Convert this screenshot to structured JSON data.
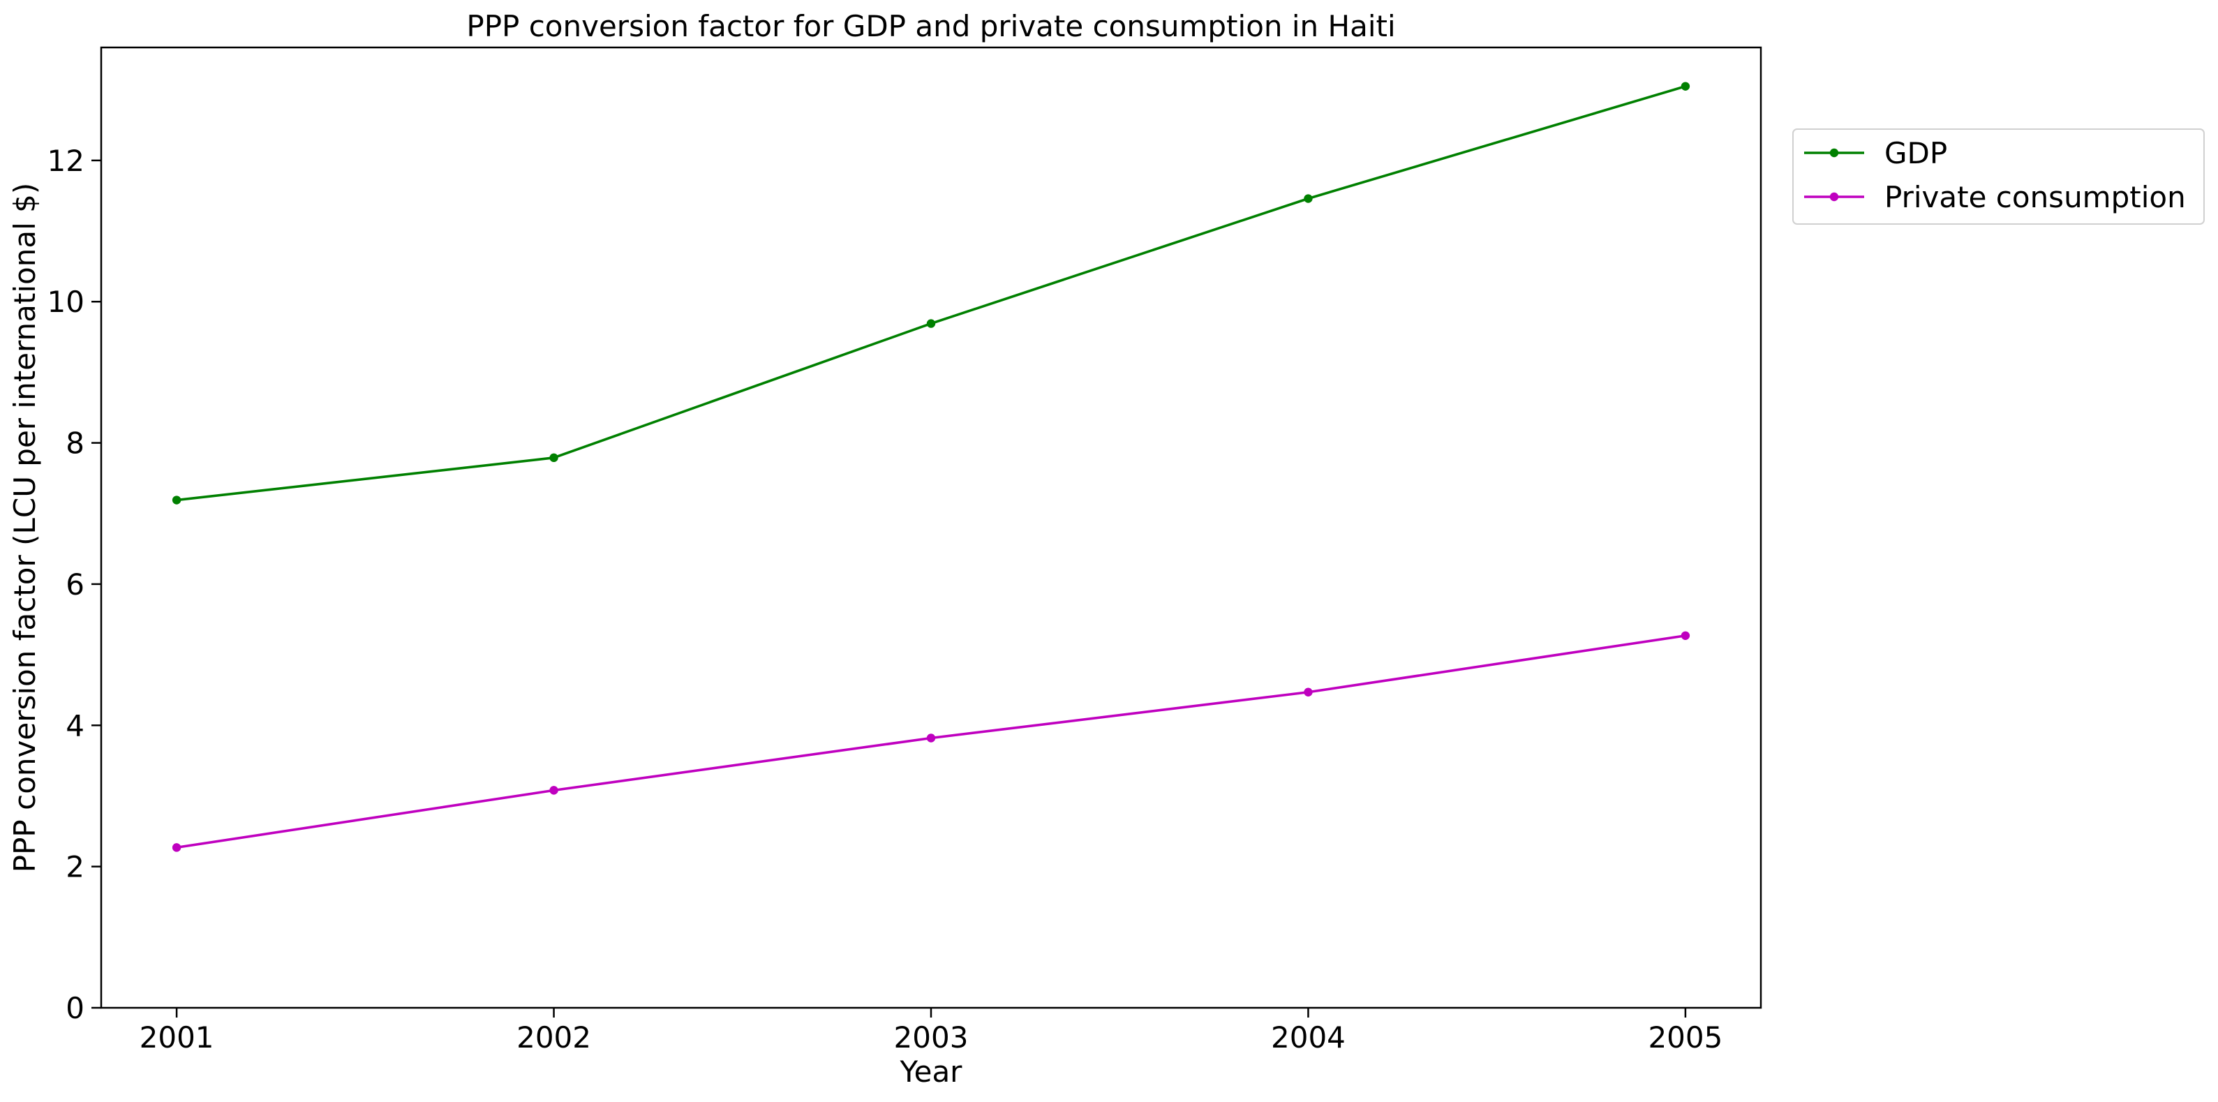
{
  "chart_data": {
    "type": "line",
    "title": "PPP conversion factor for GDP and private consumption in Haiti",
    "xlabel": "Year",
    "ylabel": "PPP conversion factor (LCU per international $)",
    "x": [
      "2001",
      "2002",
      "2003",
      "2004",
      "2005"
    ],
    "xlim": [
      2000.8,
      2005.2
    ],
    "ylim": [
      0,
      13.6
    ],
    "yticks": [
      "0",
      "2",
      "4",
      "6",
      "8",
      "10",
      "12"
    ],
    "grid": false,
    "legend_position": "upper right, outside plot",
    "series": [
      {
        "name": "GDP",
        "values": [
          7.19,
          7.79,
          9.69,
          11.46,
          13.05
        ],
        "color": "#008000",
        "marker": "dot"
      },
      {
        "name": " Private consumption",
        "values": [
          2.27,
          3.08,
          3.82,
          4.47,
          5.27
        ],
        "color": "#bf00bf",
        "marker": "dot"
      }
    ]
  }
}
